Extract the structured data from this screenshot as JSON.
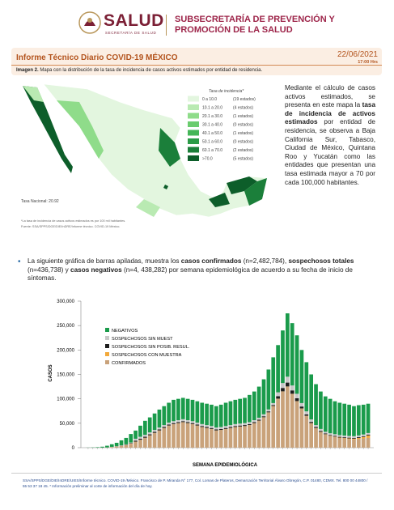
{
  "header": {
    "logo": "SALUD",
    "logo_subtitle": "SECRETARÍA DE SALUD",
    "department": "SUBSECRETARÍA DE PREVENCIÓN Y PROMOCIÓN DE LA SALUD"
  },
  "report": {
    "title": "Informe Técnico Diario COVID-19 MÉXICO",
    "date": "22/06/2021",
    "time": "17:00 Hrs"
  },
  "caption": {
    "label": "Imagen 2.",
    "text": "Mapa con la distribución de la tasa de incidencia de casos activos estimados por entidad de residencia."
  },
  "map": {
    "legend_title": "Tasa de incidencia*",
    "legend": [
      {
        "range": "0 a 10.0",
        "count": "(19 estados)",
        "color": "#e3f6df"
      },
      {
        "range": "10.1 a 20.0",
        "count": "(4 estados)",
        "color": "#b9eab2"
      },
      {
        "range": "20.1 a 30.0",
        "count": "(1 estados)",
        "color": "#8fdc8a"
      },
      {
        "range": "30.1 a 40.0",
        "count": "(0 estados)",
        "color": "#6acc6e"
      },
      {
        "range": "40.1 a 50.0",
        "count": "(1 estados)",
        "color": "#45b658"
      },
      {
        "range": "50.1 a 60.0",
        "count": "(0 estados)",
        "color": "#2b9b47"
      },
      {
        "range": "60.1 a 70.0",
        "count": "(2 estados)",
        "color": "#1b7f3a"
      },
      {
        "range": ">70.0",
        "count": "(5 estados)",
        "color": "#0d5e2a"
      }
    ],
    "national_rate": "Tasa Nacional: 20.92",
    "notes": [
      "*La tasa de incidencia de casos activos estimados es por 100 mil habitantes.",
      "Fuente: SSA/SPPS/DGE/DIE/InDRE/Informe técnico. COVID-19 México."
    ]
  },
  "paragraph": {
    "segments": [
      {
        "text": "Mediante el cálculo de casos activos estimados, se presenta en este mapa la ",
        "bold": false
      },
      {
        "text": "tasa de incidencia de activos estimados",
        "bold": true
      },
      {
        "text": " por entidad de residencia, se observa a Baja California Sur, Tabasco, Ciudad de México, Quintana Roo y Yucatán como las entidades que presentan una tasa estimada mayor a 70 por cada 100,000 habitantes.",
        "bold": false
      }
    ]
  },
  "bullet": {
    "segments": [
      {
        "text": "La siguiente gráfica de barras apiladas, muestra los ",
        "bold": false
      },
      {
        "text": "casos confirmados",
        "bold": true
      },
      {
        "text": " (n=2,482,784), ",
        "bold": false
      },
      {
        "text": "sospechosos totales",
        "bold": true
      },
      {
        "text": " (n=436,738) y ",
        "bold": false
      },
      {
        "text": "casos negativos",
        "bold": true
      },
      {
        "text": " (n=4, 438,282) por semana epidemiológica de acuerdo a su fecha de inicio de síntomas.",
        "bold": false
      }
    ]
  },
  "chart_data": {
    "type": "stacked_bar",
    "x_label": "SEMANA EPIDEMIOLÓGICA",
    "y_label": "CASOS",
    "ylim": [
      0,
      300000
    ],
    "yticks": [
      0,
      {
        "value": 50000,
        "label": "50,000"
      },
      {
        "value": 100000,
        "label": "100,000"
      },
      {
        "value": 150000,
        "label": "150,000"
      },
      {
        "value": 200000,
        "label": "200,000"
      },
      {
        "value": 250000,
        "label": "250,000"
      },
      {
        "value": 300000,
        "label": "300,000"
      }
    ],
    "grid": false,
    "series": [
      {
        "name": "CONFIRMADOS",
        "color": "#c9a27a",
        "values": [
          0,
          50,
          100,
          200,
          500,
          1000,
          2000,
          3500,
          5000,
          8000,
          12000,
          16000,
          20000,
          25000,
          30000,
          35000,
          40000,
          45000,
          48000,
          50000,
          52000,
          50000,
          48000,
          45000,
          42000,
          40000,
          38000,
          35000,
          36000,
          38000,
          40000,
          42000,
          43000,
          44000,
          46000,
          50000,
          55000,
          62000,
          72000,
          85000,
          100000,
          115000,
          125000,
          110000,
          95000,
          80000,
          65000,
          50000,
          40000,
          32000,
          27000,
          24000,
          22000,
          20000,
          19000,
          18000,
          17000,
          18000,
          19000,
          20000
        ]
      },
      {
        "name": "SOSPECHOSOS CON MUESTRA",
        "color": "#f2a93b",
        "values": [
          0,
          0,
          0,
          0,
          0,
          300,
          300,
          300,
          300,
          300,
          300,
          300,
          300,
          300,
          300,
          300,
          300,
          300,
          300,
          300,
          300,
          300,
          300,
          300,
          300,
          300,
          300,
          300,
          300,
          300,
          300,
          300,
          300,
          300,
          300,
          300,
          300,
          300,
          300,
          300,
          300,
          300,
          300,
          300,
          300,
          300,
          300,
          300,
          300,
          300,
          500,
          500,
          600,
          700,
          800,
          1000,
          1500,
          2000,
          3000,
          5000
        ]
      },
      {
        "name": "SOSPECHOSOS SIN POSIB. RESUL.",
        "color": "#1e1e1e",
        "values": [
          0,
          0,
          0,
          0,
          0,
          100,
          200,
          300,
          500,
          800,
          2000,
          2000,
          2000,
          2000,
          2000,
          2000,
          2000,
          2000,
          2000,
          2000,
          2000,
          2000,
          2000,
          2000,
          2000,
          2000,
          2000,
          2000,
          2000,
          2000,
          2000,
          2000,
          2000,
          2000,
          2000,
          2000,
          2000,
          2000,
          2000,
          2000,
          5000,
          7000,
          8000,
          7000,
          6000,
          4000,
          3000,
          2500,
          2000,
          2000,
          1500,
          1500,
          1500,
          1500,
          1500,
          1500,
          1500,
          1500,
          1500,
          1500
        ]
      },
      {
        "name": "SOSPECHOSOS SIN MUEST",
        "color": "#c8c8c8",
        "values": [
          0,
          0,
          0,
          0,
          0,
          300,
          500,
          800,
          1000,
          1500,
          4000,
          4000,
          4000,
          4000,
          4000,
          4000,
          4000,
          4000,
          4000,
          4000,
          4000,
          4000,
          4000,
          4000,
          4000,
          4000,
          4000,
          4000,
          4000,
          4000,
          4000,
          4000,
          4000,
          4000,
          4000,
          4000,
          4000,
          4000,
          4000,
          4000,
          8000,
          10000,
          12000,
          10000,
          9000,
          7000,
          6000,
          5000,
          4000,
          4000,
          3500,
          3500,
          3500,
          3500,
          3500,
          3500,
          3500,
          3500,
          3500,
          3500
        ]
      },
      {
        "name": "NEGATIVOS",
        "color": "#1a9b4b",
        "values": [
          200,
          450,
          900,
          1800,
          3500,
          5300,
          7000,
          10100,
          13200,
          17400,
          16700,
          22700,
          28700,
          30700,
          33700,
          36700,
          38700,
          40700,
          43700,
          43700,
          43700,
          43700,
          43700,
          43700,
          43700,
          43700,
          43700,
          43700,
          45700,
          47700,
          48700,
          49700,
          50700,
          51700,
          55700,
          58700,
          63700,
          71700,
          81700,
          93700,
          96700,
          107700,
          129700,
          127700,
          119700,
          108700,
          100700,
          92200,
          83700,
          76700,
          72500,
          70500,
          67400,
          66300,
          65200,
          64000,
          61500,
          62000,
          61000,
          60000
        ]
      }
    ]
  },
  "footer": "SSA/SPPS/DGE/DIE/InDRE/UIES/Informe técnico. COVID-19 /México. Francisco de P. Miranda N° 177, Col. Lomas de Plateros, Demarcación Territorial Álvaro Obregón, C.P. 01480, CDMX. Tel. 800 00 44800 / 55 53 37 18 45. * Información preliminar al corte de información del día de hoy."
}
